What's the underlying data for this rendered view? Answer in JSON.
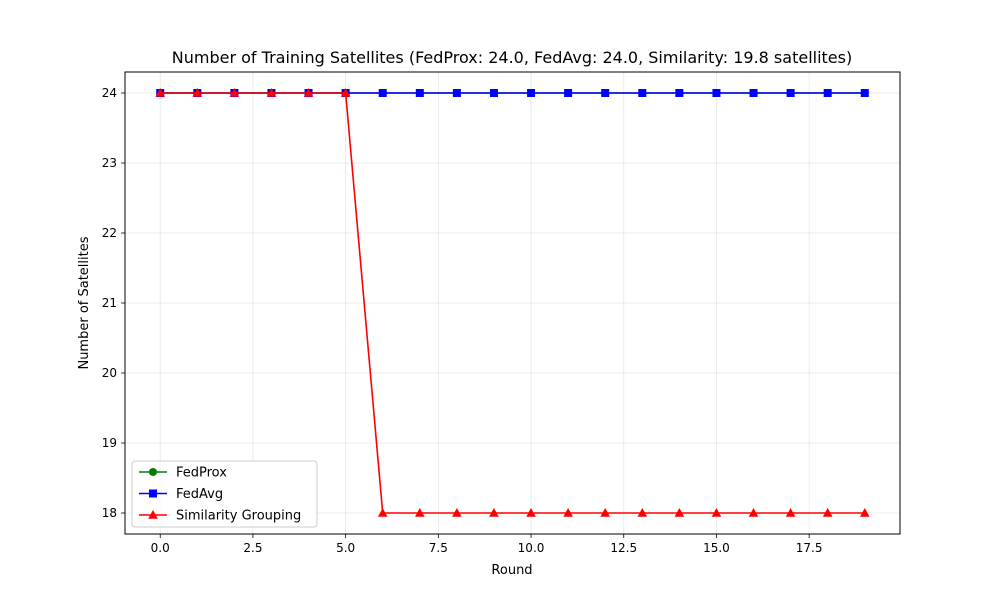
{
  "chart_data": {
    "type": "line",
    "title": "Number of Training Satellites (FedProx: 24.0, FedAvg: 24.0, Similarity: 19.8 satellites)",
    "xlabel": "Round",
    "ylabel": "Number of Satellites",
    "xlim": [
      -0.95,
      19.95
    ],
    "ylim": [
      17.7,
      24.3
    ],
    "xticks": [
      0.0,
      2.5,
      5.0,
      7.5,
      10.0,
      12.5,
      15.0,
      17.5
    ],
    "xtick_labels": [
      "0.0",
      "2.5",
      "5.0",
      "7.5",
      "10.0",
      "12.5",
      "15.0",
      "17.5"
    ],
    "yticks": [
      18,
      19,
      20,
      21,
      22,
      23,
      24
    ],
    "ytick_labels": [
      "18",
      "19",
      "20",
      "21",
      "22",
      "23",
      "24"
    ],
    "grid": true,
    "legend_position": "lower-left",
    "x": [
      0,
      1,
      2,
      3,
      4,
      5,
      6,
      7,
      8,
      9,
      10,
      11,
      12,
      13,
      14,
      15,
      16,
      17,
      18,
      19
    ],
    "series": [
      {
        "name": "FedProx",
        "color": "#008000",
        "marker": "circle",
        "values": [
          24,
          24,
          24,
          24,
          24,
          24,
          24,
          24,
          24,
          24,
          24,
          24,
          24,
          24,
          24,
          24,
          24,
          24,
          24,
          24
        ]
      },
      {
        "name": "FedAvg",
        "color": "#0000ff",
        "marker": "square",
        "values": [
          24,
          24,
          24,
          24,
          24,
          24,
          24,
          24,
          24,
          24,
          24,
          24,
          24,
          24,
          24,
          24,
          24,
          24,
          24,
          24
        ]
      },
      {
        "name": "Similarity Grouping",
        "color": "#ff0000",
        "marker": "triangle",
        "values": [
          24,
          24,
          24,
          24,
          24,
          24,
          18,
          18,
          18,
          18,
          18,
          18,
          18,
          18,
          18,
          18,
          18,
          18,
          18,
          18
        ]
      }
    ]
  }
}
